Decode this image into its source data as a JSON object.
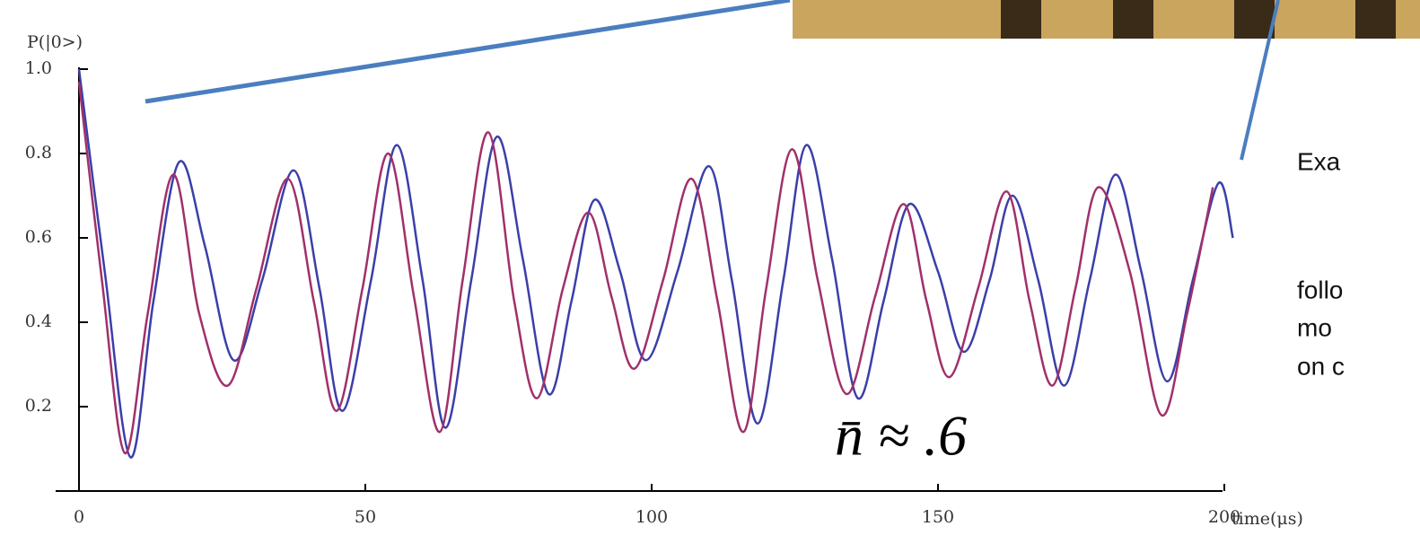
{
  "chart_data": {
    "type": "line",
    "y_label": "P(|0>)",
    "x_label": "time(μs)",
    "annotation": "n̄ ≈ .6",
    "side_text": [
      "Exa",
      "follo",
      "mo",
      "on c"
    ],
    "xlim": [
      0,
      205
    ],
    "ylim": [
      0,
      1
    ],
    "xticks": [
      0,
      50,
      100,
      150,
      200
    ],
    "yticks": [
      0.2,
      0.4,
      0.6,
      0.8,
      {
        "value": 1,
        "label": "1.0"
      }
    ],
    "series": [
      {
        "color": "#3b3fa8",
        "x": [
          0,
          4.5,
          9,
          13,
          17.5,
          22,
          27,
          32,
          37.5,
          42,
          46,
          51,
          55.5,
          60,
          64,
          68.5,
          73,
          77.5,
          82,
          86,
          90,
          94.5,
          99,
          104.5,
          110,
          114,
          118.5,
          123,
          127,
          131.5,
          136,
          140.5,
          145,
          150,
          154.5,
          159,
          163,
          167.5,
          172,
          176.5,
          181,
          185.5,
          190,
          194.5,
          199,
          201.5
        ],
        "values": [
          1.0,
          0.52,
          0.08,
          0.45,
          0.78,
          0.58,
          0.31,
          0.5,
          0.76,
          0.48,
          0.19,
          0.5,
          0.82,
          0.5,
          0.15,
          0.5,
          0.84,
          0.55,
          0.23,
          0.45,
          0.69,
          0.52,
          0.31,
          0.52,
          0.77,
          0.5,
          0.16,
          0.5,
          0.82,
          0.55,
          0.22,
          0.45,
          0.68,
          0.52,
          0.33,
          0.5,
          0.7,
          0.5,
          0.25,
          0.5,
          0.75,
          0.52,
          0.26,
          0.5,
          0.73,
          0.6
        ]
      },
      {
        "color": "#a0306a",
        "x": [
          0,
          4,
          8,
          12,
          16.5,
          21,
          26,
          31,
          36.5,
          41,
          45,
          49.5,
          54,
          58.5,
          63,
          67,
          71.5,
          76,
          80,
          84.5,
          89,
          93,
          97,
          102,
          107,
          111.5,
          116,
          120,
          124.5,
          129,
          134,
          139,
          144,
          148,
          152,
          157,
          162,
          166,
          170,
          174,
          178,
          183.5,
          189,
          193.5,
          198
        ],
        "values": [
          0.97,
          0.5,
          0.09,
          0.42,
          0.75,
          0.42,
          0.25,
          0.48,
          0.74,
          0.45,
          0.19,
          0.48,
          0.8,
          0.46,
          0.14,
          0.5,
          0.85,
          0.45,
          0.22,
          0.48,
          0.66,
          0.46,
          0.29,
          0.5,
          0.74,
          0.45,
          0.14,
          0.48,
          0.81,
          0.5,
          0.23,
          0.46,
          0.68,
          0.45,
          0.27,
          0.48,
          0.71,
          0.45,
          0.25,
          0.48,
          0.72,
          0.52,
          0.18,
          0.42,
          0.72
        ]
      }
    ]
  }
}
